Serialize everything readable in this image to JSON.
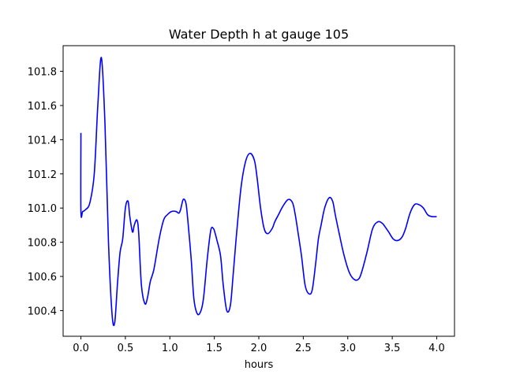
{
  "chart_data": {
    "type": "line",
    "title": "Water Depth h at gauge 105",
    "xlabel": "hours",
    "ylabel": "",
    "xlim": [
      -0.2,
      4.2
    ],
    "ylim": [
      100.25,
      101.95
    ],
    "xticks": [
      0.0,
      0.5,
      1.0,
      1.5,
      2.0,
      2.5,
      3.0,
      3.5,
      4.0
    ],
    "xtick_labels": [
      "0.0",
      "0.5",
      "1.0",
      "1.5",
      "2.0",
      "2.5",
      "3.0",
      "3.5",
      "4.0"
    ],
    "yticks": [
      100.4,
      100.6,
      100.8,
      101.0,
      101.2,
      101.4,
      101.6,
      101.8
    ],
    "ytick_labels": [
      "100.4",
      "100.6",
      "100.8",
      "101.0",
      "101.2",
      "101.4",
      "101.6",
      "101.8"
    ],
    "grid": false,
    "series": [
      {
        "color": "#0000ff",
        "x": [
          0.0,
          0.0,
          0.02,
          0.05,
          0.1,
          0.15,
          0.19,
          0.23,
          0.27,
          0.31,
          0.35,
          0.38,
          0.41,
          0.44,
          0.47,
          0.5,
          0.53,
          0.55,
          0.58,
          0.6,
          0.63,
          0.65,
          0.68,
          0.72,
          0.75,
          0.78,
          0.82,
          0.88,
          0.93,
          0.97,
          1.02,
          1.07,
          1.1,
          1.12,
          1.15,
          1.18,
          1.2,
          1.24,
          1.27,
          1.31,
          1.35,
          1.38,
          1.42,
          1.46,
          1.49,
          1.51,
          1.53,
          1.57,
          1.6,
          1.64,
          1.68,
          1.71,
          1.75,
          1.8,
          1.85,
          1.9,
          1.95,
          1.98,
          2.02,
          2.06,
          2.1,
          2.15,
          2.18,
          2.22,
          2.27,
          2.33,
          2.38,
          2.41,
          2.44,
          2.48,
          2.52,
          2.56,
          2.6,
          2.64,
          2.67,
          2.7,
          2.74,
          2.79,
          2.83,
          2.86,
          2.9,
          2.96,
          3.02,
          3.08,
          3.13,
          3.17,
          3.22,
          3.28,
          3.34,
          3.39,
          3.42,
          3.46,
          3.51,
          3.56,
          3.61,
          3.65,
          3.7,
          3.75,
          3.8,
          3.85,
          3.9,
          3.95,
          4.0
        ],
        "y": [
          101.44,
          100.98,
          100.98,
          100.99,
          101.03,
          101.2,
          101.6,
          101.88,
          101.5,
          100.8,
          100.38,
          100.33,
          100.55,
          100.74,
          100.82,
          101.0,
          101.04,
          100.95,
          100.86,
          100.9,
          100.93,
          100.85,
          100.55,
          100.44,
          100.48,
          100.57,
          100.64,
          100.82,
          100.93,
          100.96,
          100.98,
          100.98,
          100.97,
          100.99,
          101.05,
          101.03,
          100.94,
          100.7,
          100.47,
          100.38,
          100.4,
          100.48,
          100.7,
          100.87,
          100.88,
          100.85,
          100.81,
          100.72,
          100.55,
          100.4,
          100.43,
          100.6,
          100.85,
          101.12,
          101.27,
          101.32,
          101.28,
          101.18,
          101.0,
          100.88,
          100.85,
          100.88,
          100.92,
          100.96,
          101.01,
          101.05,
          101.03,
          100.96,
          100.86,
          100.72,
          100.55,
          100.5,
          100.52,
          100.68,
          100.82,
          100.9,
          101.0,
          101.06,
          101.04,
          100.96,
          100.86,
          100.72,
          100.62,
          100.58,
          100.59,
          100.65,
          100.75,
          100.88,
          100.92,
          100.91,
          100.89,
          100.86,
          100.82,
          100.81,
          100.83,
          100.88,
          100.97,
          101.02,
          101.02,
          101.0,
          100.96,
          100.95,
          100.95
        ]
      }
    ]
  }
}
